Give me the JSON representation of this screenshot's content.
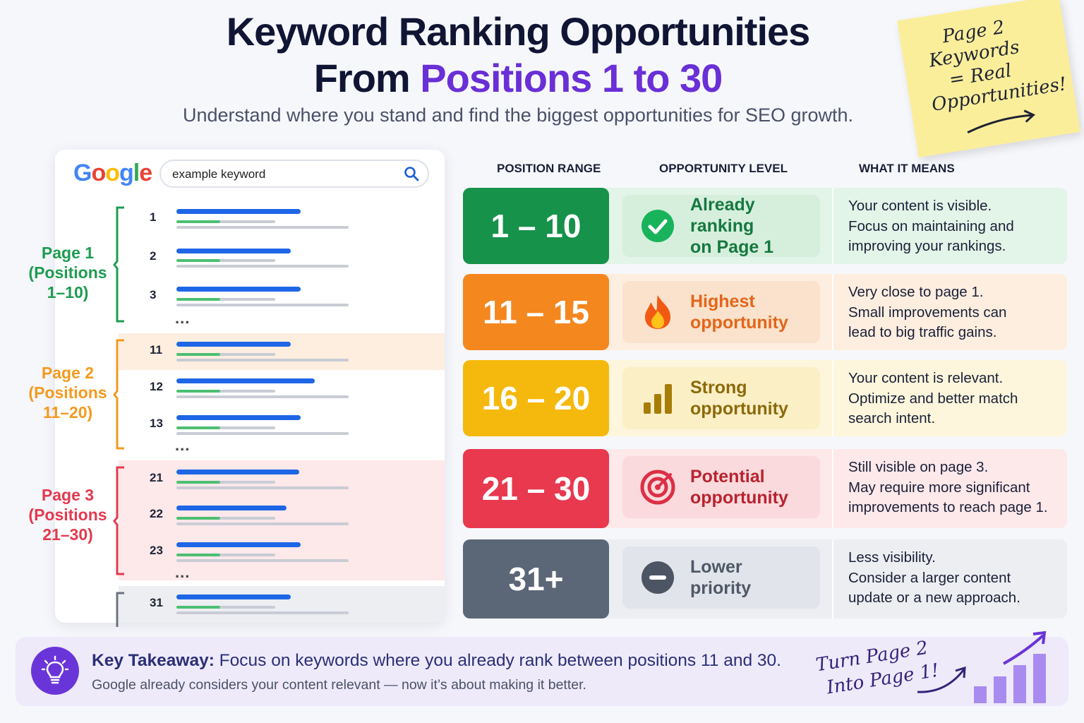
{
  "header": {
    "title_line1": "Keyword Ranking Opportunities",
    "title_prefix": "From ",
    "title_accent": "Positions 1 to 30",
    "subtitle": "Understand where you stand and find the biggest opportunities for SEO growth."
  },
  "sticky_note": {
    "lines": [
      "Page 2",
      "Keywords",
      "= Real",
      "Opportunities!"
    ]
  },
  "serp": {
    "logo": "Google",
    "query": "example keyword",
    "ellipsis": "...",
    "groups": [
      {
        "label_l1": "Page 1",
        "label_l2": "(Positions",
        "label_l3": "1–10)",
        "color": "#1e9c50",
        "rows": [
          "1",
          "2",
          "3"
        ]
      },
      {
        "label_l1": "Page 2",
        "label_l2": "(Positions",
        "label_l3": "11–20)",
        "color": "#f39a1f",
        "rows": [
          "11",
          "12",
          "13"
        ]
      },
      {
        "label_l1": "Page 3",
        "label_l2": "(Positions",
        "label_l3": "21–30)",
        "color": "#e3394f",
        "rows": [
          "21",
          "22",
          "23"
        ]
      },
      {
        "rows": [
          "31"
        ]
      }
    ]
  },
  "table": {
    "headers": [
      "POSITION RANGE",
      "OPPORTUNITY LEVEL",
      "WHAT IT MEANS"
    ],
    "rows": [
      {
        "range": "1 – 10",
        "level_l1": "Already ranking",
        "level_l2": "on Page 1",
        "icon": "check-circle-icon",
        "meaning": [
          "Your content is visible.",
          "Focus on maintaining and",
          "improving your rankings."
        ],
        "color": "#16924a",
        "tint": "#e3f4e8",
        "chip": "#d6efdd",
        "text": "#16783f"
      },
      {
        "range": "11 – 15",
        "level_l1": "Highest",
        "level_l2": "opportunity",
        "icon": "fire-icon",
        "meaning": [
          "Very close to page 1.",
          "Small improvements can",
          "lead to big traffic gains."
        ],
        "color": "#f5871f",
        "tint": "#fdeee0",
        "chip": "#fbe2cc",
        "text": "#e3661a"
      },
      {
        "range": "16 – 20",
        "level_l1": "Strong",
        "level_l2": "opportunity",
        "icon": "bar-chart-icon",
        "meaning": [
          "Your content is relevant.",
          "Optimize and better match",
          "search intent."
        ],
        "color": "#f5b90d",
        "tint": "#fdf6dc",
        "chip": "#fbefc6",
        "text": "#8c6a0a"
      },
      {
        "range": "21 – 30",
        "level_l1": "Potential",
        "level_l2": "opportunity",
        "icon": "target-icon",
        "meaning": [
          "Still visible on page 3.",
          "May require more significant",
          "improvements to reach page 1."
        ],
        "color": "#e8394f",
        "tint": "#fde8ea",
        "chip": "#fadadd",
        "text": "#b8232f"
      },
      {
        "range": "31+",
        "level_l1": "Lower",
        "level_l2": "priority",
        "icon": "minus-circle-icon",
        "meaning": [
          "Less visibility.",
          "Consider a larger content",
          "update or a new approach."
        ],
        "color": "#5b6677",
        "tint": "#eceef2",
        "chip": "#e1e4ea",
        "text": "#4e5868"
      }
    ]
  },
  "takeaway": {
    "label": "Key Takeaway:",
    "text": " Focus on keywords where you already rank between positions 11 and 30.",
    "sub": "Google already considers your content relevant — now it’s about making it better.",
    "note_l1": "Turn Page 2",
    "note_l2": "Into Page 1!"
  }
}
